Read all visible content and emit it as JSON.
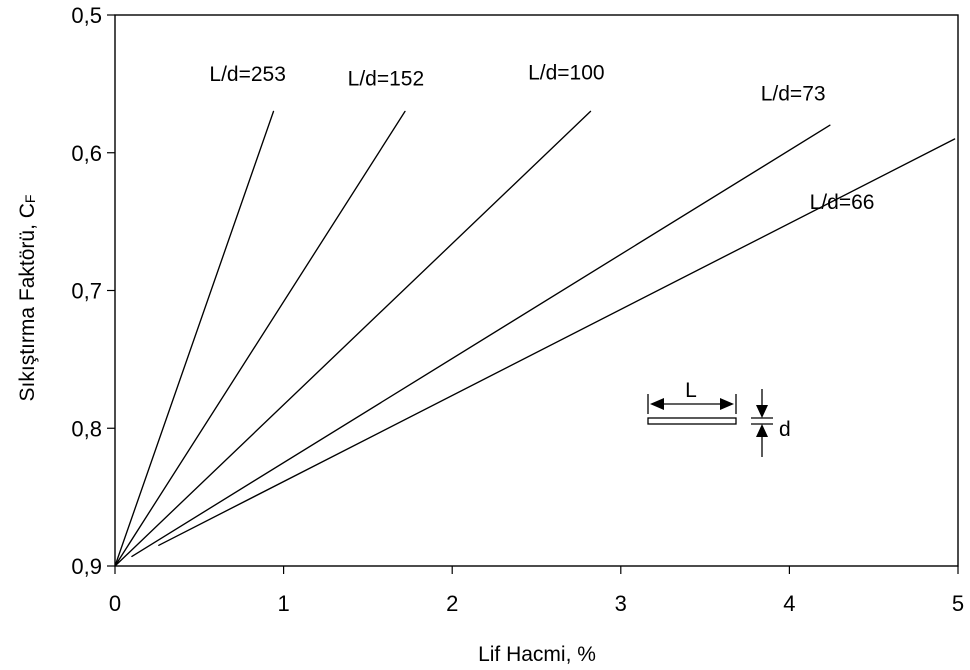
{
  "chart_data": {
    "type": "line",
    "title": "",
    "xlabel": "Lif Hacmi, %",
    "ylabel_main": "Sıkıştırma Faktörü, C",
    "ylabel_sub": "F",
    "xlim": [
      0,
      5
    ],
    "ylim": [
      0.9,
      0.5
    ],
    "y_inverted": true,
    "grid": false,
    "x_ticks": [
      0,
      1,
      2,
      3,
      4,
      5
    ],
    "x_tick_labels": [
      "0",
      "1",
      "2",
      "3",
      "4",
      "5"
    ],
    "y_ticks": [
      0.5,
      0.6,
      0.7,
      0.8,
      0.9
    ],
    "y_tick_labels": [
      "0,5",
      "0,6",
      "0,7",
      "0,8",
      "0,9"
    ],
    "series": [
      {
        "name": "L/d=253",
        "x": [
          0,
          0.94
        ],
        "y": [
          0.9,
          0.57
        ]
      },
      {
        "name": "L/d=152",
        "x": [
          0,
          1.72
        ],
        "y": [
          0.9,
          0.57
        ]
      },
      {
        "name": "L/d=100",
        "x": [
          0,
          2.82
        ],
        "y": [
          0.9,
          0.57
        ]
      },
      {
        "name": "L/d=73",
        "x": [
          0.1,
          4.24
        ],
        "y": [
          0.893,
          0.58
        ]
      },
      {
        "name": "L/d=66",
        "x": [
          0.26,
          4.98
        ],
        "y": [
          0.885,
          0.59
        ]
      }
    ],
    "inset": {
      "length_label": "L",
      "diameter_label": "d"
    },
    "line_color": "#000000"
  }
}
